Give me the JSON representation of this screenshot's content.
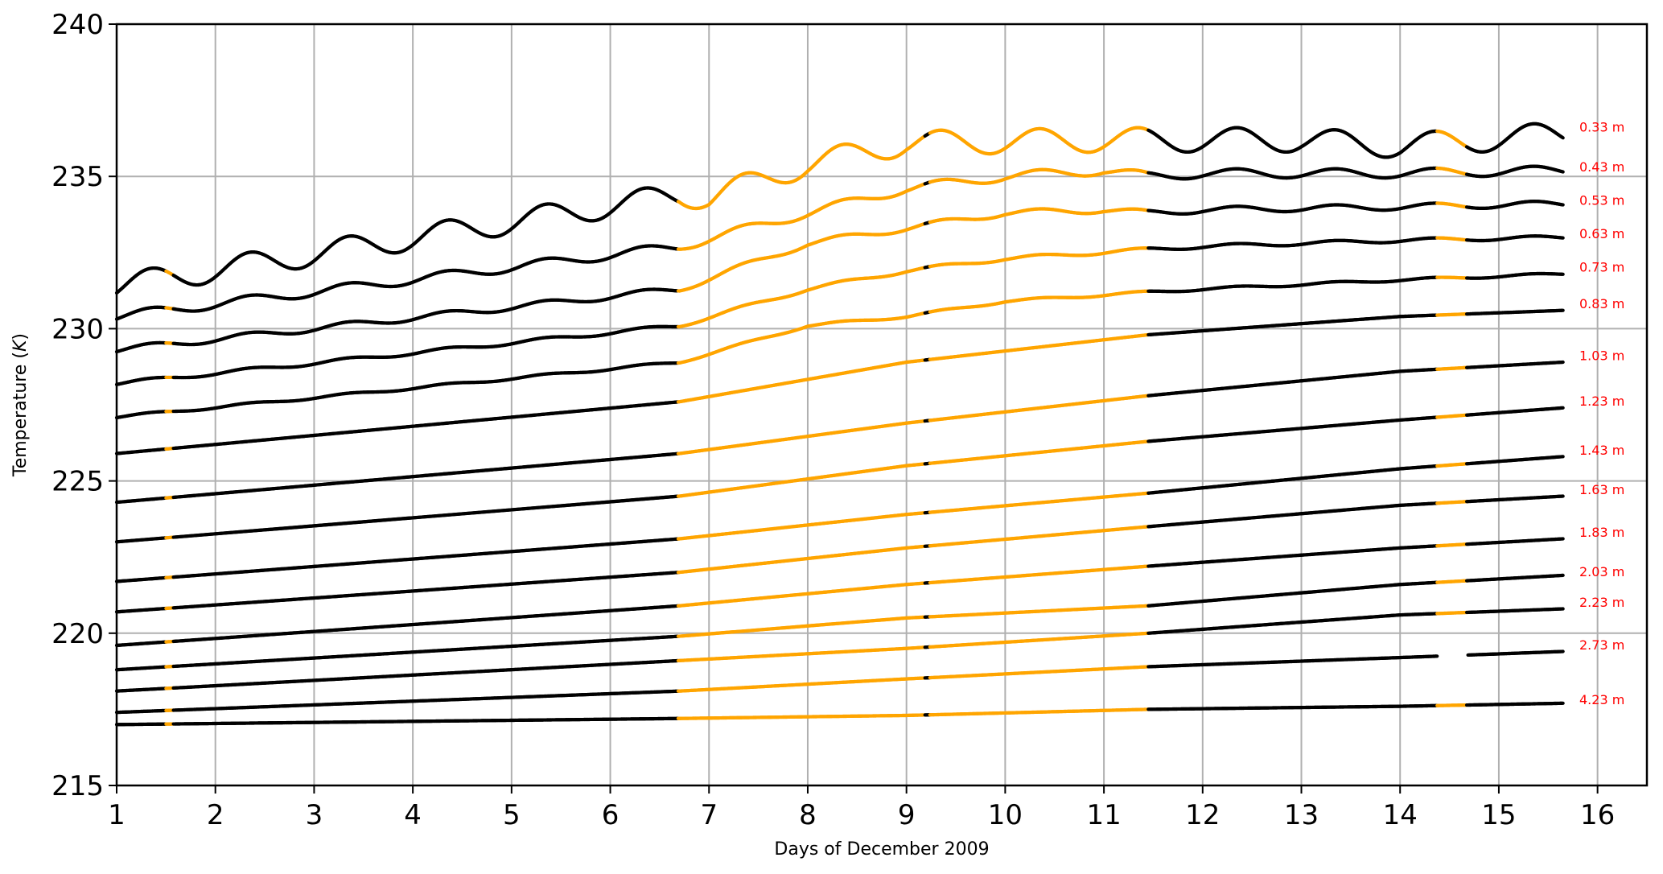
{
  "chart_data": {
    "type": "line",
    "title": "",
    "xlabel": "Days of December 2009",
    "ylabel_prefix": "Temperature (",
    "ylabel_unit": "K",
    "ylabel_suffix": ")",
    "xlim": [
      1,
      16.5
    ],
    "ylim": [
      215,
      240
    ],
    "x_ticks": [
      "1",
      "2",
      "3",
      "4",
      "5",
      "6",
      "7",
      "8",
      "9",
      "10",
      "11",
      "12",
      "13",
      "14",
      "15",
      "16"
    ],
    "y_ticks": [
      "215",
      "220",
      "225",
      "230",
      "235",
      "240"
    ],
    "grid": true,
    "colors": {
      "measured": "#000000",
      "highlighted": "#ffa500",
      "label": "#ff0000",
      "grid": "#b0b0b0"
    },
    "highlight_intervals": [
      [
        1.5,
        1.58
      ],
      [
        6.7,
        9.2
      ],
      [
        9.24,
        11.45
      ],
      [
        14.38,
        14.68
      ]
    ],
    "gap_intervals": [
      [
        9.2,
        9.24
      ]
    ],
    "x_range": [
      1.0,
      15.65
    ],
    "depth_labels": [
      {
        "text": "0.33 m",
        "y": 236.6
      },
      {
        "text": "0.43 m",
        "y": 235.3
      },
      {
        "text": "0.53 m",
        "y": 234.2
      },
      {
        "text": "0.63 m",
        "y": 233.1
      },
      {
        "text": "0.73 m",
        "y": 232.0
      },
      {
        "text": "0.83 m",
        "y": 230.8
      },
      {
        "text": "1.03 m",
        "y": 229.1
      },
      {
        "text": "1.23 m",
        "y": 227.6
      },
      {
        "text": "1.43 m",
        "y": 226.0
      },
      {
        "text": "1.63 m",
        "y": 224.7
      },
      {
        "text": "1.83 m",
        "y": 223.3
      },
      {
        "text": "2.03 m",
        "y": 222.0
      },
      {
        "text": "2.23 m",
        "y": 221.0
      },
      {
        "text": "2.73 m",
        "y": 219.6
      },
      {
        "text": "4.23 m",
        "y": 217.8
      }
    ],
    "series": [
      {
        "base": [
          [
            1,
            231.4
          ],
          [
            6.7,
            234.4
          ],
          [
            7,
            234.3
          ],
          [
            8,
            235.4
          ],
          [
            9,
            236.1
          ],
          [
            11,
            236.2
          ],
          [
            12,
            236.2
          ],
          [
            13,
            236.2
          ],
          [
            14,
            236.0
          ],
          [
            15.65,
            236.4
          ]
        ],
        "wave_amp": 0.4
      },
      {
        "base": [
          [
            1,
            230.4
          ],
          [
            6.7,
            232.7
          ],
          [
            8,
            233.8
          ],
          [
            9,
            234.6
          ],
          [
            10,
            235.0
          ],
          [
            11,
            235.2
          ],
          [
            11.45,
            235.0
          ],
          [
            12,
            235.1
          ],
          [
            13,
            235.1
          ],
          [
            14,
            235.1
          ],
          [
            15.65,
            235.2
          ]
        ],
        "wave_amp": 0.15
      },
      {
        "base": [
          [
            1,
            229.3
          ],
          [
            6.7,
            231.3
          ],
          [
            8,
            232.8
          ],
          [
            9,
            233.3
          ],
          [
            10,
            233.8
          ],
          [
            11,
            233.9
          ],
          [
            11.45,
            233.8
          ],
          [
            12,
            233.9
          ],
          [
            14,
            234.0
          ],
          [
            15.65,
            234.1
          ]
        ],
        "wave_amp": 0.1
      },
      {
        "base": [
          [
            1,
            228.2
          ],
          [
            6.7,
            230.1
          ],
          [
            8,
            231.3
          ],
          [
            9,
            231.9
          ],
          [
            10,
            232.3
          ],
          [
            11.45,
            232.6
          ],
          [
            12,
            232.7
          ],
          [
            14,
            232.9
          ],
          [
            15.65,
            233.0
          ]
        ],
        "wave_amp": 0.06
      },
      {
        "base": [
          [
            1,
            227.1
          ],
          [
            6.7,
            228.9
          ],
          [
            8,
            230.1
          ],
          [
            9,
            230.4
          ],
          [
            10,
            230.9
          ],
          [
            11.45,
            231.2
          ],
          [
            12,
            231.3
          ],
          [
            14,
            231.6
          ],
          [
            15.65,
            231.8
          ]
        ],
        "wave_amp": 0.04
      },
      {
        "base": [
          [
            1,
            225.9
          ],
          [
            6.7,
            227.6
          ],
          [
            9,
            228.9
          ],
          [
            11.45,
            229.8
          ],
          [
            14,
            230.4
          ],
          [
            15.65,
            230.6
          ]
        ],
        "wave_amp": 0
      },
      {
        "base": [
          [
            1,
            224.3
          ],
          [
            6.7,
            225.9
          ],
          [
            9,
            226.9
          ],
          [
            11.45,
            227.8
          ],
          [
            14,
            228.6
          ],
          [
            15.65,
            228.9
          ]
        ],
        "wave_amp": 0
      },
      {
        "base": [
          [
            1,
            223.0
          ],
          [
            6.7,
            224.5
          ],
          [
            9,
            225.5
          ],
          [
            11.45,
            226.3
          ],
          [
            14,
            227.0
          ],
          [
            15.65,
            227.4
          ]
        ],
        "wave_amp": 0
      },
      {
        "base": [
          [
            1,
            221.7
          ],
          [
            6.7,
            223.1
          ],
          [
            9,
            223.9
          ],
          [
            11.45,
            224.6
          ],
          [
            14,
            225.4
          ],
          [
            15.65,
            225.8
          ]
        ],
        "wave_amp": 0
      },
      {
        "base": [
          [
            1,
            220.7
          ],
          [
            6.7,
            222.0
          ],
          [
            9,
            222.8
          ],
          [
            11.45,
            223.5
          ],
          [
            14,
            224.2
          ],
          [
            15.65,
            224.5
          ]
        ],
        "wave_amp": 0
      },
      {
        "base": [
          [
            1,
            219.6
          ],
          [
            6.7,
            220.9
          ],
          [
            9,
            221.6
          ],
          [
            11.45,
            222.2
          ],
          [
            14,
            222.8
          ],
          [
            15.65,
            223.1
          ]
        ],
        "wave_amp": 0
      },
      {
        "base": [
          [
            1,
            218.8
          ],
          [
            6.7,
            219.9
          ],
          [
            9,
            220.5
          ],
          [
            11.45,
            220.9
          ],
          [
            14,
            221.6
          ],
          [
            15.65,
            221.9
          ]
        ],
        "wave_amp": 0
      },
      {
        "base": [
          [
            1,
            218.1
          ],
          [
            6.7,
            219.1
          ],
          [
            9,
            219.5
          ],
          [
            11.45,
            220.0
          ],
          [
            14,
            220.6
          ],
          [
            15.65,
            220.8
          ]
        ],
        "wave_amp": 0
      },
      {
        "base": [
          [
            1,
            217.4
          ],
          [
            6.7,
            218.1
          ],
          [
            9,
            218.5
          ],
          [
            11.45,
            218.9
          ],
          [
            14,
            219.2
          ],
          [
            15.65,
            219.4
          ]
        ],
        "wave_amp": 0,
        "missing": [
          [
            14.38,
            14.68
          ]
        ]
      },
      {
        "base": [
          [
            1,
            217.0
          ],
          [
            6.7,
            217.2
          ],
          [
            9,
            217.3
          ],
          [
            11.45,
            217.5
          ],
          [
            14,
            217.6
          ],
          [
            15.65,
            217.7
          ]
        ],
        "wave_amp": 0
      }
    ]
  }
}
